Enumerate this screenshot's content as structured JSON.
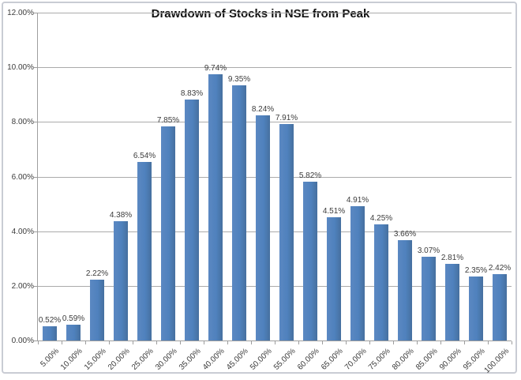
{
  "chart_data": {
    "type": "bar",
    "title": "Drawdown of Stocks in NSE from Peak",
    "xlabel": "",
    "ylabel": "",
    "categories": [
      "5.00%",
      "10.00%",
      "15.00%",
      "20.00%",
      "25.00%",
      "30.00%",
      "35.00%",
      "40.00%",
      "45.00%",
      "50.00%",
      "55.00%",
      "60.00%",
      "65.00%",
      "70.00%",
      "75.00%",
      "80.00%",
      "85.00%",
      "90.00%",
      "95.00%",
      "100.00%"
    ],
    "values": [
      0.52,
      0.59,
      2.22,
      4.38,
      6.54,
      7.85,
      8.83,
      9.74,
      9.35,
      8.24,
      7.91,
      5.82,
      4.51,
      4.91,
      4.25,
      3.66,
      3.07,
      2.81,
      2.35,
      2.42
    ],
    "data_labels": [
      "0.52%",
      "0.59%",
      "2.22%",
      "4.38%",
      "6.54%",
      "7.85%",
      "8.83%",
      "9.74%",
      "9.35%",
      "8.24%",
      "7.91%",
      "5.82%",
      "4.51%",
      "4.91%",
      "4.25%",
      "3.66%",
      "3.07%",
      "2.81%",
      "2.35%",
      "2.42%"
    ],
    "y_ticks": [
      "0.00%",
      "2.00%",
      "4.00%",
      "6.00%",
      "8.00%",
      "10.00%",
      "12.00%"
    ],
    "ylim": [
      0,
      12
    ],
    "grid": true,
    "legend": "none",
    "bar_color": "#4F81BD",
    "gridline_color": "#ABABAB",
    "axis_color": "#9E9E9E",
    "label_color": "#3C3C3C",
    "frame_border_color": "#C9CCD4"
  }
}
